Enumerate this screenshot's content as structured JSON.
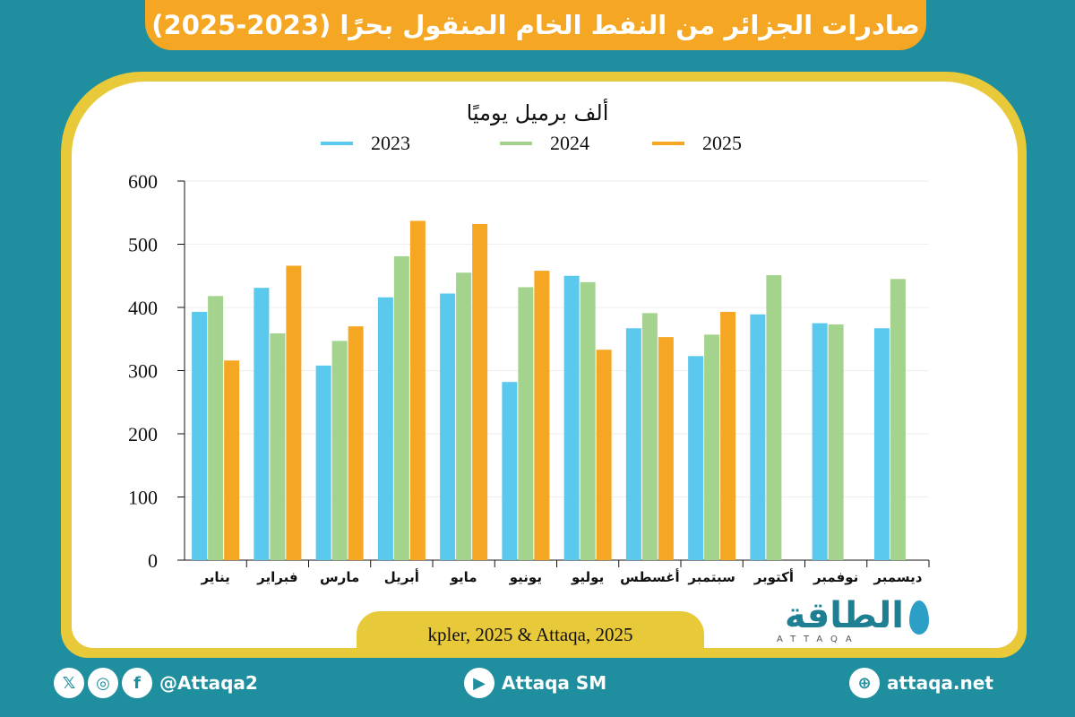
{
  "title": "صادرات الجزائر من النفط الخام المنقول بحرًا (2023-2025)",
  "unit_label": "ألف برميل يوميًا",
  "source": "kpler, 2025 & Attaqa, 2025",
  "logo": {
    "name": "الطاقة",
    "sub": "ATTAQA"
  },
  "footer": {
    "social_handle": "@Attaqa2",
    "youtube": "Attaqa SM",
    "website": "attaqa.net",
    "icons": [
      "x-icon",
      "instagram-icon",
      "facebook-icon",
      "youtube-icon",
      "globe-icon"
    ]
  },
  "colors": {
    "s2023": "#5bc8ee",
    "s2024": "#a3d38c",
    "s2025": "#f5a623"
  },
  "chart_data": {
    "type": "bar",
    "categories": [
      "يناير",
      "فبراير",
      "مارس",
      "أبريل",
      "مايو",
      "يونيو",
      "يوليو",
      "أغسطس",
      "سبتمبر",
      "أكتوبر",
      "نوفمبر",
      "ديسمبر"
    ],
    "series": [
      {
        "name": "2023",
        "values": [
          393,
          431,
          308,
          416,
          422,
          282,
          450,
          367,
          323,
          389,
          375,
          367
        ]
      },
      {
        "name": "2024",
        "values": [
          418,
          359,
          347,
          481,
          455,
          432,
          440,
          391,
          357,
          451,
          373,
          445
        ]
      },
      {
        "name": "2025",
        "values": [
          316,
          466,
          370,
          537,
          532,
          458,
          333,
          353,
          393,
          null,
          null,
          null
        ]
      }
    ],
    "yticks": [
      "0",
      "100",
      "200",
      "300",
      "400",
      "500",
      "600"
    ],
    "ylim": [
      0,
      600
    ],
    "legend_position": "top"
  }
}
